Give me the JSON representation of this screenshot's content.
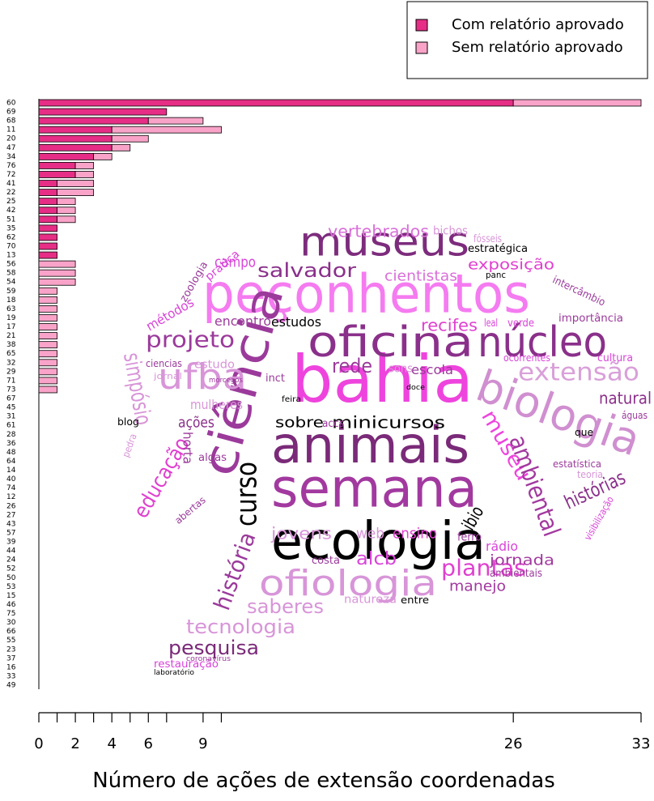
{
  "chart_data": {
    "type": "bar",
    "orientation": "horizontal",
    "stacked": true,
    "xlabel": "Número de ações de extensão coordenadas",
    "categories": [
      "60",
      "69",
      "68",
      "11",
      "20",
      "47",
      "34",
      "76",
      "72",
      "41",
      "22",
      "25",
      "42",
      "51",
      "35",
      "62",
      "70",
      "13",
      "56",
      "58",
      "54",
      "59",
      "18",
      "63",
      "19",
      "17",
      "21",
      "38",
      "65",
      "32",
      "29",
      "71",
      "73",
      "67",
      "45",
      "31",
      "61",
      "28",
      "36",
      "48",
      "64",
      "14",
      "40",
      "74",
      "12",
      "26",
      "27",
      "43",
      "57",
      "39",
      "44",
      "24",
      "52",
      "50",
      "53",
      "15",
      "46",
      "75",
      "30",
      "66",
      "55",
      "23",
      "37",
      "16",
      "33",
      "49"
    ],
    "series": [
      {
        "name": "Com relatório aprovado",
        "color": "#e62e86",
        "values": [
          26,
          7,
          6,
          4,
          4,
          4,
          3,
          2,
          2,
          1,
          1,
          1,
          1,
          1,
          1,
          1,
          1,
          1,
          0,
          0,
          0,
          0,
          0,
          0,
          0,
          0,
          0,
          0,
          0,
          0,
          0,
          0,
          0,
          0,
          0,
          0,
          0,
          0,
          0,
          0,
          0,
          0,
          0,
          0,
          0,
          0,
          0,
          0,
          0,
          0,
          0,
          0,
          0,
          0,
          0,
          0,
          0,
          0,
          0,
          0,
          0,
          0,
          0,
          0,
          0,
          0
        ]
      },
      {
        "name": "Sem relatório aprovado",
        "color": "#f9a3c9",
        "values": [
          7,
          0,
          3,
          6,
          2,
          1,
          1,
          1,
          1,
          2,
          2,
          1,
          1,
          1,
          0,
          0,
          0,
          0,
          2,
          2,
          2,
          1,
          1,
          1,
          1,
          1,
          1,
          1,
          1,
          1,
          1,
          1,
          1,
          0,
          0,
          0,
          0,
          0,
          0,
          0,
          0,
          0,
          0,
          0,
          0,
          0,
          0,
          0,
          0,
          0,
          0,
          0,
          0,
          0,
          0,
          0,
          0,
          0,
          0,
          0,
          0,
          0,
          0,
          0,
          0,
          0
        ]
      }
    ],
    "xlim": [
      0,
      33
    ],
    "xticks": [
      0,
      2,
      4,
      6,
      9,
      26,
      33
    ],
    "xminor": [
      1,
      3,
      5,
      7,
      10
    ],
    "legend": "top-right"
  },
  "word_cloud": {
    "words": [
      {
        "text": "peçonhentos",
        "color": "#f57bf0"
      },
      {
        "text": "museus",
        "color": "#7d2c7d"
      },
      {
        "text": "bahia",
        "color": "#ee44dd"
      },
      {
        "text": "animais",
        "color": "#7a2a78"
      },
      {
        "text": "semana",
        "color": "#a2399f"
      },
      {
        "text": "ecologia",
        "color": "#000000"
      },
      {
        "text": "ciência",
        "color": "#9b3a9b"
      },
      {
        "text": "oficina",
        "color": "#8a308a"
      },
      {
        "text": "núcleo",
        "color": "#8a308a"
      },
      {
        "text": "biologia",
        "color": "#d08fd0"
      },
      {
        "text": "extensão",
        "color": "#d9a0d9"
      },
      {
        "text": "ofiologia",
        "color": "#d895d8"
      },
      {
        "text": "projeto",
        "color": "#9b3a9b"
      },
      {
        "text": "ufba",
        "color": "#d895d8"
      },
      {
        "text": "simpósio",
        "color": "#d895d8"
      },
      {
        "text": "educação",
        "color": "#e040d0"
      },
      {
        "text": "curso",
        "color": "#000000"
      },
      {
        "text": "museu",
        "color": "#ee44dd"
      },
      {
        "text": "ambiental",
        "color": "#a2399f"
      },
      {
        "text": "histórias",
        "color": "#8a308a"
      },
      {
        "text": "natural",
        "color": "#8a308a"
      },
      {
        "text": "salvador",
        "color": "#8a308a"
      },
      {
        "text": "exposição",
        "color": "#e040d0"
      },
      {
        "text": "vertebrados",
        "color": "#d970d9"
      },
      {
        "text": "cientistas",
        "color": "#d970d9"
      },
      {
        "text": "recifes",
        "color": "#e040d0"
      },
      {
        "text": "rede",
        "color": "#9b3a9b"
      },
      {
        "text": "sobre",
        "color": "#000000"
      },
      {
        "text": "minicursos",
        "color": "#000000"
      },
      {
        "text": "jovens",
        "color": "#d895d8"
      },
      {
        "text": "web",
        "color": "#d895d8"
      },
      {
        "text": "ensino",
        "color": "#e040d0"
      },
      {
        "text": "alcb",
        "color": "#d944d9"
      },
      {
        "text": "plantas",
        "color": "#e040d0"
      },
      {
        "text": "manejo",
        "color": "#a2399f"
      },
      {
        "text": "jornada",
        "color": "#a2399f"
      },
      {
        "text": "saberes",
        "color": "#d895d8"
      },
      {
        "text": "tecnologia",
        "color": "#d895d8"
      },
      {
        "text": "pesquisa",
        "color": "#7a2a78"
      },
      {
        "text": "história",
        "color": "#9b3a9b"
      },
      {
        "text": "natureza",
        "color": "#d895d8"
      },
      {
        "text": "entre",
        "color": "#000000"
      },
      {
        "text": "estudos",
        "color": "#000000"
      },
      {
        "text": "encontro",
        "color": "#9b3a9b"
      },
      {
        "text": "campo",
        "color": "#d944d9"
      },
      {
        "text": "métodos",
        "color": "#d944d9"
      },
      {
        "text": "zoologia",
        "color": "#9b3a9b"
      },
      {
        "text": "prática",
        "color": "#d944d9"
      },
      {
        "text": "mulheres",
        "color": "#d895d8"
      },
      {
        "text": "ações",
        "color": "#8a308a"
      },
      {
        "text": "ciencias",
        "color": "#9b3a9b"
      },
      {
        "text": "estudo",
        "color": "#d895d8"
      },
      {
        "text": "blog",
        "color": "#000000"
      },
      {
        "text": "horta",
        "color": "#9b3a9b"
      },
      {
        "text": "algas",
        "color": "#9b3a9b"
      },
      {
        "text": "pedra",
        "color": "#d895d8"
      },
      {
        "text": "abertas",
        "color": "#9b3a9b"
      },
      {
        "text": "leal",
        "color": "#d944d9"
      },
      {
        "text": "verde",
        "color": "#d944d9"
      },
      {
        "text": "importância",
        "color": "#9b3a9b"
      },
      {
        "text": "cultura",
        "color": "#d944d9"
      },
      {
        "text": "estatística",
        "color": "#9b3a9b"
      },
      {
        "text": "teoria",
        "color": "#d895d8"
      },
      {
        "text": "rádio",
        "color": "#d944d9"
      },
      {
        "text": "ambientais",
        "color": "#9b3a9b"
      },
      {
        "text": "escola",
        "color": "#9b3a9b"
      },
      {
        "text": "sons",
        "color": "#d895d8"
      },
      {
        "text": "inct",
        "color": "#9b3a9b"
      },
      {
        "text": "accs",
        "color": "#9b3a9b"
      },
      {
        "text": "ibio",
        "color": "#000000"
      },
      {
        "text": "ferro",
        "color": "#9b3a9b"
      },
      {
        "text": "costa",
        "color": "#9b3a9b"
      },
      {
        "text": "fósseis",
        "color": "#d895d8"
      },
      {
        "text": "estratégica",
        "color": "#000000"
      },
      {
        "text": "bichos",
        "color": "#d895d8"
      },
      {
        "text": "intercâmbio",
        "color": "#9b3a9b"
      },
      {
        "text": "restauração",
        "color": "#d944d9"
      },
      {
        "text": "laboratório",
        "color": "#000000"
      },
      {
        "text": "coronavírus",
        "color": "#9b3a9b"
      },
      {
        "text": "que",
        "color": "#000000"
      },
      {
        "text": "águas",
        "color": "#9b3a9b"
      },
      {
        "text": "visibilização",
        "color": "#d944d9"
      },
      {
        "text": "ocorrentes",
        "color": "#d944d9"
      },
      {
        "text": "panc",
        "color": "#000000"
      },
      {
        "text": "jornal",
        "color": "#d895d8"
      },
      {
        "text": "morcegos",
        "color": "#9b3a9b"
      },
      {
        "text": "feira",
        "color": "#000000"
      },
      {
        "text": "doce",
        "color": "#000000"
      }
    ]
  }
}
